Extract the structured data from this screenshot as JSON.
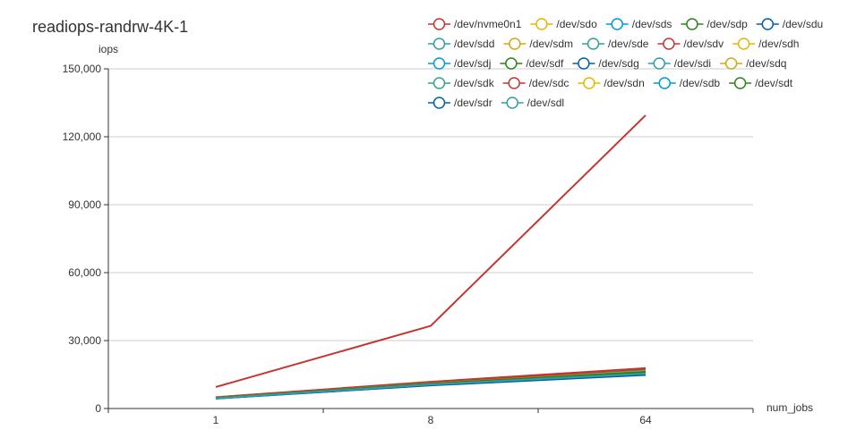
{
  "chart_data": {
    "type": "line",
    "title": "readiops-randrw-4K-1",
    "xlabel": "num_jobs",
    "ylabel": "iops",
    "categories": [
      "1",
      "8",
      "64"
    ],
    "ylim": [
      0,
      150000
    ],
    "yticks": [
      "0",
      "30,000",
      "60,000",
      "90,000",
      "120,000",
      "150,000"
    ],
    "grid": true,
    "legend_position": "top-right",
    "series": [
      {
        "name": "/dev/nvme0n1",
        "color": "#c23531",
        "values": [
          9500,
          36500,
          129500
        ]
      },
      {
        "name": "/dev/sdo",
        "color": "#e6b600",
        "values": [
          4800,
          11200,
          16500
        ]
      },
      {
        "name": "/dev/sds",
        "color": "#0098d9",
        "values": [
          4700,
          11000,
          16200
        ]
      },
      {
        "name": "/dev/sdp",
        "color": "#2b821d",
        "values": [
          4600,
          10800,
          16000
        ]
      },
      {
        "name": "/dev/sdu",
        "color": "#005eaa",
        "values": [
          4500,
          10500,
          15500
        ]
      },
      {
        "name": "/dev/sdd",
        "color": "#339ca8",
        "values": [
          4800,
          11300,
          17000
        ]
      },
      {
        "name": "/dev/sdm",
        "color": "#cda819",
        "values": [
          4700,
          11000,
          16300
        ]
      },
      {
        "name": "/dev/sde",
        "color": "#32a487",
        "values": [
          4600,
          10900,
          16100
        ]
      },
      {
        "name": "/dev/sdv",
        "color": "#c23531",
        "values": [
          5000,
          11800,
          17800
        ]
      },
      {
        "name": "/dev/sdh",
        "color": "#e6b600",
        "values": [
          4900,
          11400,
          16800
        ]
      },
      {
        "name": "/dev/sdj",
        "color": "#0098d9",
        "values": [
          4800,
          11200,
          16600
        ]
      },
      {
        "name": "/dev/sdf",
        "color": "#2b821d",
        "values": [
          4700,
          11000,
          16400
        ]
      },
      {
        "name": "/dev/sdg",
        "color": "#005eaa",
        "values": [
          4400,
          10300,
          15000
        ]
      },
      {
        "name": "/dev/sdi",
        "color": "#339ca8",
        "values": [
          4800,
          11200,
          16700
        ]
      },
      {
        "name": "/dev/sdq",
        "color": "#cda819",
        "values": [
          4700,
          11100,
          16400
        ]
      },
      {
        "name": "/dev/sdk",
        "color": "#32a487",
        "values": [
          4600,
          10800,
          15800
        ]
      },
      {
        "name": "/dev/sdc",
        "color": "#c23531",
        "values": [
          4900,
          11600,
          17500
        ]
      },
      {
        "name": "/dev/sdn",
        "color": "#e6b600",
        "values": [
          4700,
          11100,
          16300
        ]
      },
      {
        "name": "/dev/sdb",
        "color": "#0098d9",
        "values": [
          4600,
          10900,
          16000
        ]
      },
      {
        "name": "/dev/sdt",
        "color": "#2b821d",
        "values": [
          4700,
          11000,
          16200
        ]
      },
      {
        "name": "/dev/sdr",
        "color": "#005eaa",
        "values": [
          4400,
          10200,
          14800
        ]
      },
      {
        "name": "/dev/sdl",
        "color": "#339ca8",
        "values": [
          4500,
          10600,
          15400
        ]
      }
    ]
  }
}
